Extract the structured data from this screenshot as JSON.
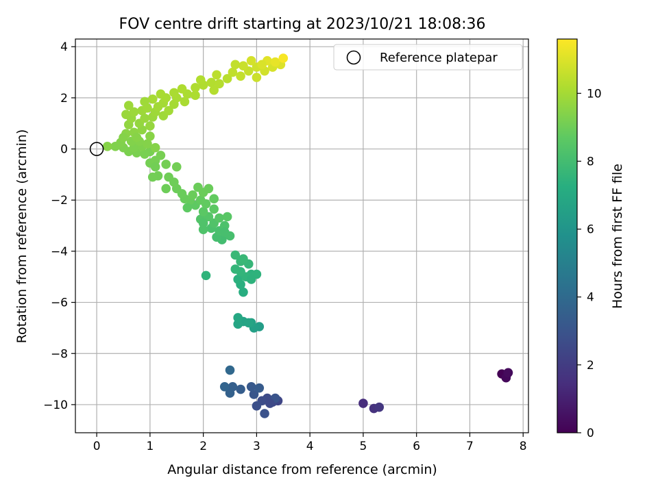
{
  "chart_data": {
    "type": "scatter",
    "title": "FOV centre drift starting at 2023/10/21 18:08:36",
    "xlabel": "Angular distance from reference (arcmin)",
    "ylabel": "Rotation from reference (arcmin)",
    "xlim": [
      -0.4,
      8.1
    ],
    "ylim": [
      -11.1,
      4.3
    ],
    "xticks": [
      0,
      1,
      2,
      3,
      4,
      5,
      6,
      7,
      8
    ],
    "yticks": [
      -10,
      -8,
      -6,
      -4,
      -2,
      0,
      2,
      4
    ],
    "grid": true,
    "legend": {
      "placement": "top-right",
      "label": "Reference platepar"
    },
    "colorbar": {
      "label": "Hours from first FF file",
      "min": 0,
      "max": 11.6,
      "ticks": [
        0,
        2,
        4,
        6,
        8,
        10
      ],
      "colormap": "viridis"
    },
    "reference_point": {
      "x": 0,
      "y": 0
    },
    "points": [
      {
        "x": 7.6,
        "y": -8.8,
        "t": 0.0
      },
      {
        "x": 7.7,
        "y": -8.8,
        "t": 0.1
      },
      {
        "x": 7.68,
        "y": -8.95,
        "t": 0.2
      },
      {
        "x": 7.72,
        "y": -8.75,
        "t": 0.3
      },
      {
        "x": 5.0,
        "y": -9.95,
        "t": 1.4
      },
      {
        "x": 5.2,
        "y": -10.15,
        "t": 1.6
      },
      {
        "x": 5.3,
        "y": -10.1,
        "t": 1.8
      },
      {
        "x": 3.4,
        "y": -9.85,
        "t": 2.4
      },
      {
        "x": 3.3,
        "y": -9.9,
        "t": 2.5
      },
      {
        "x": 3.2,
        "y": -9.75,
        "t": 2.6
      },
      {
        "x": 3.1,
        "y": -9.85,
        "t": 2.7
      },
      {
        "x": 3.0,
        "y": -10.05,
        "t": 2.8
      },
      {
        "x": 3.15,
        "y": -10.35,
        "t": 2.9
      },
      {
        "x": 3.35,
        "y": -9.75,
        "t": 3.0
      },
      {
        "x": 2.95,
        "y": -9.6,
        "t": 3.1
      },
      {
        "x": 2.9,
        "y": -9.3,
        "t": 3.2
      },
      {
        "x": 3.05,
        "y": -9.35,
        "t": 3.3
      },
      {
        "x": 2.7,
        "y": -9.4,
        "t": 3.4
      },
      {
        "x": 2.55,
        "y": -9.3,
        "t": 3.5
      },
      {
        "x": 2.5,
        "y": -9.55,
        "t": 3.6
      },
      {
        "x": 2.4,
        "y": -9.3,
        "t": 3.7
      },
      {
        "x": 2.5,
        "y": -8.65,
        "t": 3.9
      },
      {
        "x": 3.25,
        "y": -9.95,
        "t": 2.55
      },
      {
        "x": 3.05,
        "y": -6.95,
        "t": 6.4
      },
      {
        "x": 2.95,
        "y": -7.0,
        "t": 6.5
      },
      {
        "x": 2.9,
        "y": -6.8,
        "t": 6.6
      },
      {
        "x": 2.75,
        "y": -6.75,
        "t": 6.7
      },
      {
        "x": 2.65,
        "y": -6.85,
        "t": 6.8
      },
      {
        "x": 2.65,
        "y": -6.6,
        "t": 6.9
      },
      {
        "x": 2.85,
        "y": -6.8,
        "t": 6.75
      },
      {
        "x": 2.75,
        "y": -5.6,
        "t": 7.2
      },
      {
        "x": 2.7,
        "y": -5.3,
        "t": 7.3
      },
      {
        "x": 2.65,
        "y": -5.1,
        "t": 7.35
      },
      {
        "x": 2.9,
        "y": -4.9,
        "t": 7.4
      },
      {
        "x": 3.0,
        "y": -4.9,
        "t": 7.45
      },
      {
        "x": 2.8,
        "y": -5.0,
        "t": 7.5
      },
      {
        "x": 2.7,
        "y": -4.8,
        "t": 7.55
      },
      {
        "x": 2.6,
        "y": -4.7,
        "t": 7.6
      },
      {
        "x": 2.85,
        "y": -4.5,
        "t": 7.65
      },
      {
        "x": 2.7,
        "y": -4.4,
        "t": 7.7
      },
      {
        "x": 2.6,
        "y": -4.15,
        "t": 7.75
      },
      {
        "x": 2.75,
        "y": -4.3,
        "t": 7.72
      },
      {
        "x": 2.9,
        "y": -5.1,
        "t": 7.42
      },
      {
        "x": 2.05,
        "y": -4.95,
        "t": 7.5
      },
      {
        "x": 2.35,
        "y": -3.55,
        "t": 8.0
      },
      {
        "x": 2.25,
        "y": -3.45,
        "t": 8.05
      },
      {
        "x": 2.5,
        "y": -3.4,
        "t": 8.1
      },
      {
        "x": 2.3,
        "y": -3.2,
        "t": 8.15
      },
      {
        "x": 2.15,
        "y": -3.1,
        "t": 8.2
      },
      {
        "x": 2.4,
        "y": -3.0,
        "t": 8.25
      },
      {
        "x": 2.0,
        "y": -3.15,
        "t": 8.3
      },
      {
        "x": 2.2,
        "y": -2.9,
        "t": 8.35
      },
      {
        "x": 1.95,
        "y": -2.75,
        "t": 8.4
      },
      {
        "x": 2.1,
        "y": -2.65,
        "t": 8.45
      },
      {
        "x": 2.3,
        "y": -2.7,
        "t": 8.5
      },
      {
        "x": 2.45,
        "y": -2.65,
        "t": 8.55
      },
      {
        "x": 2.0,
        "y": -2.45,
        "t": 8.6
      },
      {
        "x": 2.2,
        "y": -2.35,
        "t": 8.65
      },
      {
        "x": 1.85,
        "y": -2.2,
        "t": 8.7
      },
      {
        "x": 2.05,
        "y": -2.15,
        "t": 8.75
      },
      {
        "x": 1.95,
        "y": -2.0,
        "t": 8.8
      },
      {
        "x": 1.75,
        "y": -2.0,
        "t": 8.85
      },
      {
        "x": 1.65,
        "y": -1.95,
        "t": 8.88
      },
      {
        "x": 1.6,
        "y": -1.75,
        "t": 8.9
      },
      {
        "x": 1.8,
        "y": -1.8,
        "t": 8.92
      },
      {
        "x": 2.0,
        "y": -1.7,
        "t": 8.94
      },
      {
        "x": 1.5,
        "y": -1.55,
        "t": 8.96
      },
      {
        "x": 1.3,
        "y": -1.55,
        "t": 8.98
      },
      {
        "x": 1.45,
        "y": -1.3,
        "t": 9.0
      },
      {
        "x": 1.35,
        "y": -1.1,
        "t": 9.02
      },
      {
        "x": 1.15,
        "y": -1.05,
        "t": 9.04
      },
      {
        "x": 1.05,
        "y": -1.1,
        "t": 9.06
      },
      {
        "x": 1.5,
        "y": -0.7,
        "t": 9.08
      },
      {
        "x": 1.3,
        "y": -0.6,
        "t": 9.1
      },
      {
        "x": 1.0,
        "y": -0.55,
        "t": 9.12
      },
      {
        "x": 1.1,
        "y": -0.45,
        "t": 9.14
      },
      {
        "x": 1.2,
        "y": -0.25,
        "t": 9.16
      },
      {
        "x": 1.0,
        "y": -0.1,
        "t": 9.18
      },
      {
        "x": 0.9,
        "y": -0.2,
        "t": 9.2
      },
      {
        "x": 0.75,
        "y": -0.15,
        "t": 9.22
      },
      {
        "x": 0.6,
        "y": -0.1,
        "t": 9.24
      },
      {
        "x": 0.5,
        "y": 0.05,
        "t": 9.26
      },
      {
        "x": 0.7,
        "y": 0.05,
        "t": 9.28
      },
      {
        "x": 0.85,
        "y": 0.1,
        "t": 9.3
      },
      {
        "x": 0.35,
        "y": 0.1,
        "t": 9.32
      },
      {
        "x": 0.45,
        "y": 0.25,
        "t": 9.34
      },
      {
        "x": 0.65,
        "y": 0.3,
        "t": 9.36
      },
      {
        "x": 0.8,
        "y": 0.3,
        "t": 9.38
      },
      {
        "x": 0.95,
        "y": 0.2,
        "t": 9.4
      },
      {
        "x": 1.1,
        "y": 0.05,
        "t": 9.42
      },
      {
        "x": 0.2,
        "y": 0.1,
        "t": 9.44
      },
      {
        "x": 2.1,
        "y": -1.55,
        "t": 8.92
      },
      {
        "x": 1.9,
        "y": -1.5,
        "t": 8.93
      },
      {
        "x": 2.2,
        "y": -1.95,
        "t": 8.78
      },
      {
        "x": 1.7,
        "y": -2.3,
        "t": 8.68
      },
      {
        "x": 2.0,
        "y": -2.9,
        "t": 8.33
      },
      {
        "x": 2.4,
        "y": -3.25,
        "t": 8.12
      },
      {
        "x": 1.1,
        "y": -0.7,
        "t": 9.07
      },
      {
        "x": 0.55,
        "y": 0.6,
        "t": 9.5
      },
      {
        "x": 0.7,
        "y": 0.65,
        "t": 9.55
      },
      {
        "x": 0.85,
        "y": 0.75,
        "t": 9.6
      },
      {
        "x": 0.6,
        "y": 0.95,
        "t": 9.65
      },
      {
        "x": 0.8,
        "y": 1.0,
        "t": 9.7
      },
      {
        "x": 1.0,
        "y": 0.9,
        "t": 9.72
      },
      {
        "x": 0.65,
        "y": 1.2,
        "t": 9.75
      },
      {
        "x": 0.9,
        "y": 1.2,
        "t": 9.78
      },
      {
        "x": 1.05,
        "y": 1.25,
        "t": 9.8
      },
      {
        "x": 0.7,
        "y": 1.45,
        "t": 9.83
      },
      {
        "x": 0.85,
        "y": 1.5,
        "t": 9.86
      },
      {
        "x": 1.1,
        "y": 1.45,
        "t": 9.88
      },
      {
        "x": 1.25,
        "y": 1.3,
        "t": 9.9
      },
      {
        "x": 0.95,
        "y": 1.6,
        "t": 9.92
      },
      {
        "x": 1.15,
        "y": 1.65,
        "t": 9.94
      },
      {
        "x": 1.35,
        "y": 1.5,
        "t": 9.96
      },
      {
        "x": 1.25,
        "y": 1.8,
        "t": 9.98
      },
      {
        "x": 1.45,
        "y": 1.75,
        "t": 10.0
      },
      {
        "x": 1.05,
        "y": 1.95,
        "t": 10.02
      },
      {
        "x": 1.3,
        "y": 2.0,
        "t": 10.04
      },
      {
        "x": 1.5,
        "y": 2.0,
        "t": 10.06
      },
      {
        "x": 1.65,
        "y": 1.85,
        "t": 10.08
      },
      {
        "x": 1.45,
        "y": 2.2,
        "t": 10.1
      },
      {
        "x": 1.7,
        "y": 2.15,
        "t": 10.12
      },
      {
        "x": 1.85,
        "y": 2.1,
        "t": 10.14
      },
      {
        "x": 1.6,
        "y": 2.35,
        "t": 10.16
      },
      {
        "x": 1.85,
        "y": 2.4,
        "t": 10.18
      },
      {
        "x": 2.0,
        "y": 2.5,
        "t": 10.2
      },
      {
        "x": 2.15,
        "y": 2.6,
        "t": 10.25
      },
      {
        "x": 2.3,
        "y": 2.55,
        "t": 10.3
      },
      {
        "x": 2.45,
        "y": 2.75,
        "t": 10.35
      },
      {
        "x": 2.25,
        "y": 2.9,
        "t": 10.4
      },
      {
        "x": 2.55,
        "y": 3.0,
        "t": 10.5
      },
      {
        "x": 2.7,
        "y": 2.85,
        "t": 10.55
      },
      {
        "x": 2.85,
        "y": 3.05,
        "t": 10.6
      },
      {
        "x": 2.75,
        "y": 3.25,
        "t": 10.65
      },
      {
        "x": 3.0,
        "y": 3.2,
        "t": 10.75
      },
      {
        "x": 3.15,
        "y": 3.05,
        "t": 10.8
      },
      {
        "x": 3.3,
        "y": 3.2,
        "t": 10.9
      },
      {
        "x": 3.45,
        "y": 3.3,
        "t": 11.0
      },
      {
        "x": 3.2,
        "y": 3.45,
        "t": 11.1
      },
      {
        "x": 3.35,
        "y": 3.4,
        "t": 11.2
      },
      {
        "x": 3.5,
        "y": 3.55,
        "t": 11.5
      },
      {
        "x": 3.0,
        "y": 2.8,
        "t": 10.7
      },
      {
        "x": 2.6,
        "y": 3.3,
        "t": 10.52
      },
      {
        "x": 1.95,
        "y": 2.7,
        "t": 10.22
      },
      {
        "x": 1.2,
        "y": 2.15,
        "t": 10.05
      },
      {
        "x": 0.9,
        "y": 1.85,
        "t": 9.9
      },
      {
        "x": 0.6,
        "y": 1.7,
        "t": 9.85
      },
      {
        "x": 0.55,
        "y": 1.35,
        "t": 9.8
      },
      {
        "x": 0.75,
        "y": 0.45,
        "t": 9.45
      },
      {
        "x": 0.5,
        "y": 0.45,
        "t": 9.42
      },
      {
        "x": 1.0,
        "y": 0.5,
        "t": 9.48
      },
      {
        "x": 2.2,
        "y": 2.3,
        "t": 10.28
      },
      {
        "x": 3.1,
        "y": 3.3,
        "t": 10.95
      },
      {
        "x": 2.9,
        "y": 3.45,
        "t": 10.85
      }
    ]
  }
}
